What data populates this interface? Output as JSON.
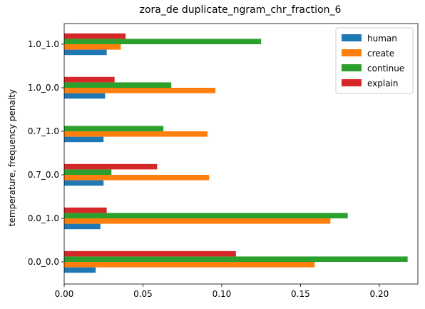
{
  "chart_data": {
    "type": "bar",
    "orientation": "horizontal",
    "title": "zora_de duplicate_ngram_chr_fraction_6",
    "xlabel": "",
    "ylabel": "temperature, frequency penalty",
    "categories": [
      "0.0_0.0",
      "0.0_1.0",
      "0.7_0.0",
      "0.7_1.0",
      "1.0_0.0",
      "1.0_1.0"
    ],
    "series": [
      {
        "name": "human",
        "color": "#1f77b4",
        "values": [
          0.02,
          0.023,
          0.025,
          0.025,
          0.026,
          0.027
        ]
      },
      {
        "name": "create",
        "color": "#ff7f0e",
        "values": [
          0.159,
          0.169,
          0.092,
          0.091,
          0.096,
          0.036
        ]
      },
      {
        "name": "continue",
        "color": "#2ca02c",
        "values": [
          0.218,
          0.18,
          0.03,
          0.063,
          0.068,
          0.125
        ]
      },
      {
        "name": "explain",
        "color": "#d62728",
        "values": [
          0.109,
          0.027,
          0.059,
          0.0,
          0.032,
          0.039
        ]
      }
    ],
    "xlim": [
      0,
      0.2245
    ],
    "xticks": [
      0.0,
      0.05,
      0.1,
      0.15,
      0.2
    ],
    "xtick_labels": [
      "0.00",
      "0.05",
      "0.10",
      "0.15",
      "0.20"
    ],
    "legend_position": "top-right",
    "grid": false
  }
}
